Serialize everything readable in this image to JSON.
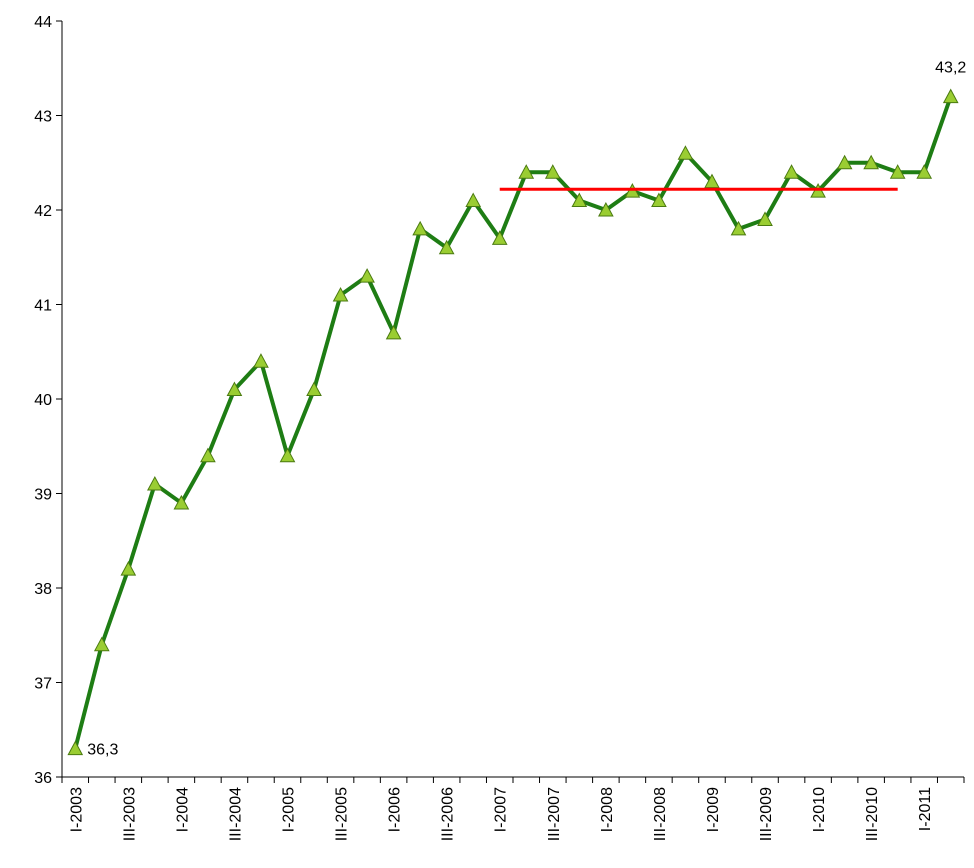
{
  "chart_data": {
    "type": "line",
    "categories": [
      "I-2003",
      null,
      "III-2003",
      null,
      "I-2004",
      null,
      "III-2004",
      null,
      "I-2005",
      null,
      "III-2005",
      null,
      "I-2006",
      null,
      "III-2006",
      null,
      "I-2007",
      null,
      "III-2007",
      null,
      "I-2008",
      null,
      "III-2008",
      null,
      "I-2009",
      null,
      "III-2009",
      null,
      "I-2010",
      null,
      "III-2010",
      null,
      "I-2011",
      null
    ],
    "series": [
      {
        "color": "#1e7d14",
        "marker_color": "#9acd32",
        "values": [
          36.3,
          37.4,
          38.2,
          39.1,
          38.9,
          39.4,
          40.1,
          40.4,
          39.4,
          40.1,
          41.1,
          41.3,
          40.7,
          41.8,
          41.6,
          42.1,
          41.7,
          42.4,
          42.4,
          42.1,
          42.0,
          42.2,
          42.1,
          42.6,
          42.3,
          41.8,
          41.9,
          42.4,
          42.2,
          42.5,
          42.5,
          42.4,
          42.4,
          43.2
        ],
        "value_labels": [
          "36,3",
          null,
          null,
          null,
          null,
          null,
          null,
          null,
          null,
          null,
          null,
          null,
          null,
          null,
          null,
          null,
          null,
          null,
          null,
          null,
          null,
          null,
          null,
          null,
          null,
          null,
          null,
          null,
          null,
          null,
          null,
          null,
          null,
          "43,2"
        ]
      },
      {
        "color": "#ff0000",
        "values": [
          null,
          null,
          null,
          null,
          null,
          null,
          null,
          null,
          null,
          null,
          null,
          null,
          null,
          null,
          null,
          null,
          42.22,
          42.22,
          42.22,
          42.22,
          42.22,
          42.22,
          42.22,
          42.22,
          42.22,
          42.22,
          42.22,
          42.22,
          42.22,
          42.22,
          42.22,
          42.22,
          null,
          null
        ]
      }
    ],
    "ylim": [
      36,
      44
    ],
    "yticks": [
      36,
      37,
      38,
      39,
      40,
      41,
      42,
      43,
      44
    ]
  }
}
